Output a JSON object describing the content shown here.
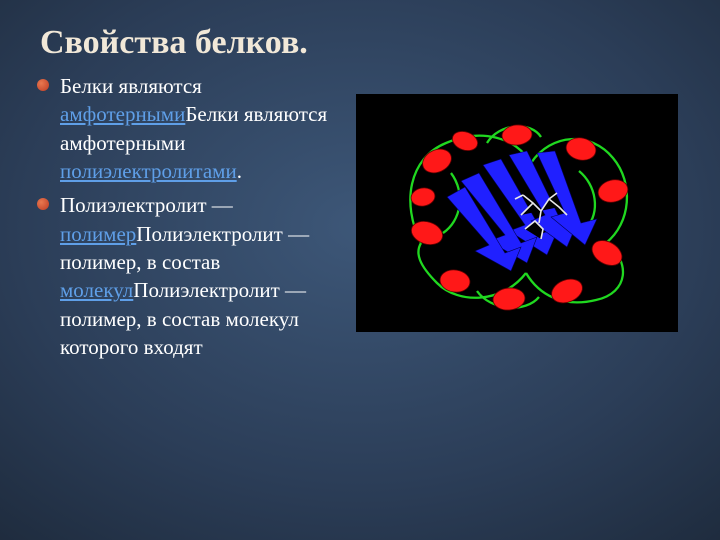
{
  "slide": {
    "title": "Свойства белков.",
    "background": {
      "top_color": "#2b3d57",
      "mid_color": "#3d5778",
      "bottom_color": "#2b3d57",
      "border_shade": "#1e2b3d"
    },
    "title_color": "#f1e8d8",
    "text_color": "#ffffff",
    "link_color": "#5f9fe8",
    "bullet_color": "#c84a2e",
    "bullet_highlight": "#e87850",
    "body_fontsize": 21,
    "title_fontsize": 34,
    "bullets": [
      {
        "runs": [
          {
            "t": "Белки являются ",
            "link": false
          },
          {
            "t": "амфотерными",
            "link": true
          },
          {
            "t": "Белки являются амфотерными ",
            "link": false
          },
          {
            "t": "полиэлектролитами",
            "link": true
          },
          {
            "t": ".",
            "link": false
          }
        ]
      },
      {
        "runs": [
          {
            "t": "Полиэлектролит — ",
            "link": false
          },
          {
            "t": "полимер",
            "link": true
          },
          {
            "t": "Полиэлектролит — полимер, в состав ",
            "link": false
          },
          {
            "t": "молекул",
            "link": true
          },
          {
            "t": "Полиэлектролит — полимер, в состав молекул которого входят",
            "link": false
          }
        ]
      }
    ],
    "image": {
      "bg": "#000000",
      "ribbon_color": "#2020ff",
      "helix_color": "#ff1818",
      "loop_color": "#20d820",
      "ligand_color": "#e8e8e8"
    }
  }
}
